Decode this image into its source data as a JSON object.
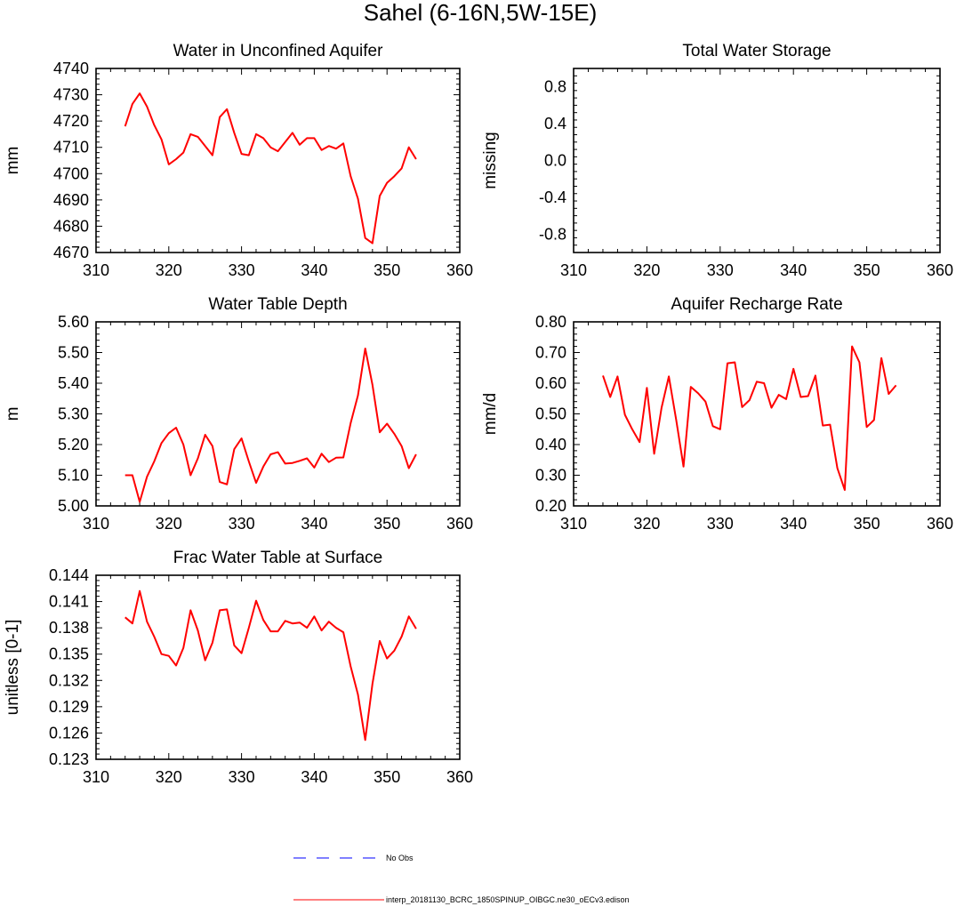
{
  "figure_title": "Sahel (6-16N,5W-15E)",
  "colors": {
    "model": "#ff0000",
    "obs": "#0000ff",
    "axis": "#000000"
  },
  "legend": {
    "obs_label": "No Obs",
    "model_label": "interp_20181130_BCRC_1850SPINUP_OIBGC.ne30_oECv3.edison"
  },
  "chart_data": [
    {
      "id": "unconfined-aquifer",
      "type": "line",
      "title": "Water in Unconfined Aquifer",
      "xlabel": "",
      "ylabel": "mm",
      "xlim": [
        310,
        360
      ],
      "ylim": [
        4670,
        4740
      ],
      "xticks": [
        310,
        320,
        330,
        340,
        350,
        360
      ],
      "yticks": [
        4670,
        4680,
        4690,
        4700,
        4710,
        4720,
        4730,
        4740
      ],
      "ytick_labels": [
        "4670",
        "4680",
        "4690",
        "4700",
        "4710",
        "4720",
        "4730",
        "4740"
      ],
      "x": [
        314,
        315,
        316,
        317,
        318,
        319,
        320,
        321,
        322,
        323,
        324,
        325,
        326,
        327,
        328,
        329,
        330,
        331,
        332,
        333,
        334,
        335,
        336,
        337,
        338,
        339,
        340,
        341,
        342,
        343,
        344,
        345,
        346,
        347,
        348,
        349,
        350,
        351,
        352,
        353,
        354
      ],
      "series": [
        {
          "name": "interp_20181130_BCRC_1850SPINUP_OIBGC.ne30_oECv3.edison",
          "values": [
            4718,
            4726.5,
            4730.5,
            4725.5,
            4718.5,
            4713,
            4703.5,
            4705.5,
            4708,
            4715,
            4714,
            4710.5,
            4707,
            4721.5,
            4724.5,
            4715.5,
            4707.5,
            4707,
            4715,
            4713.5,
            4710,
            4708.5,
            4712,
            4715.5,
            4711,
            4713.5,
            4713.5,
            4709,
            4710.5,
            4709.5,
            4711.5,
            4699,
            4690.5,
            4675.5,
            4673.5,
            4691.5,
            4696.5,
            4699,
            4702,
            4710,
            4705.5
          ]
        }
      ]
    },
    {
      "id": "total-water-storage",
      "type": "line",
      "title": "Total Water Storage",
      "xlabel": "",
      "ylabel": "missing",
      "xlim": [
        310,
        360
      ],
      "ylim": [
        -1,
        1
      ],
      "xticks": [
        310,
        320,
        330,
        340,
        350,
        360
      ],
      "yticks": [
        -0.8,
        -0.4,
        0.0,
        0.4,
        0.8
      ],
      "ytick_labels": [
        "-0.8",
        "-0.4",
        "0.0",
        "0.4",
        "0.8"
      ],
      "x": [],
      "series": []
    },
    {
      "id": "water-table-depth",
      "type": "line",
      "title": "Water Table Depth",
      "xlabel": "",
      "ylabel": "m",
      "xlim": [
        310,
        360
      ],
      "ylim": [
        5.0,
        5.6
      ],
      "xticks": [
        310,
        320,
        330,
        340,
        350,
        360
      ],
      "yticks": [
        5.0,
        5.1,
        5.2,
        5.3,
        5.4,
        5.5,
        5.6
      ],
      "ytick_labels": [
        "5.00",
        "5.10",
        "5.20",
        "5.30",
        "5.40",
        "5.50",
        "5.60"
      ],
      "x": [
        314,
        315,
        316,
        317,
        318,
        319,
        320,
        321,
        322,
        323,
        324,
        325,
        326,
        327,
        328,
        329,
        330,
        331,
        332,
        333,
        334,
        335,
        336,
        337,
        338,
        339,
        340,
        341,
        342,
        343,
        344,
        345,
        346,
        347,
        348,
        349,
        350,
        351,
        352,
        353,
        354
      ],
      "series": [
        {
          "name": "interp_20181130_BCRC_1850SPINUP_OIBGC.ne30_oECv3.edison",
          "values": [
            5.1,
            5.1,
            5.013,
            5.095,
            5.145,
            5.205,
            5.237,
            5.255,
            5.2,
            5.1,
            5.155,
            5.232,
            5.195,
            5.078,
            5.07,
            5.185,
            5.22,
            5.145,
            5.075,
            5.128,
            5.168,
            5.175,
            5.138,
            5.14,
            5.147,
            5.155,
            5.125,
            5.17,
            5.143,
            5.157,
            5.158,
            5.27,
            5.36,
            5.513,
            5.395,
            5.24,
            5.268,
            5.235,
            5.195,
            5.123,
            5.168
          ]
        }
      ]
    },
    {
      "id": "aquifer-recharge-rate",
      "type": "line",
      "title": "Aquifer Recharge Rate",
      "xlabel": "",
      "ylabel": "mm/d",
      "xlim": [
        310,
        360
      ],
      "ylim": [
        0.2,
        0.8
      ],
      "xticks": [
        310,
        320,
        330,
        340,
        350,
        360
      ],
      "yticks": [
        0.2,
        0.3,
        0.4,
        0.5,
        0.6,
        0.7,
        0.8
      ],
      "ytick_labels": [
        "0.20",
        "0.30",
        "0.40",
        "0.50",
        "0.60",
        "0.70",
        "0.80"
      ],
      "x": [
        314,
        315,
        316,
        317,
        318,
        319,
        320,
        321,
        322,
        323,
        324,
        325,
        326,
        327,
        328,
        329,
        330,
        331,
        332,
        333,
        334,
        335,
        336,
        337,
        338,
        339,
        340,
        341,
        342,
        343,
        344,
        345,
        346,
        347,
        348,
        349,
        350,
        351,
        352,
        353,
        354
      ],
      "series": [
        {
          "name": "interp_20181130_BCRC_1850SPINUP_OIBGC.ne30_oECv3.edison",
          "values": [
            0.625,
            0.555,
            0.622,
            0.497,
            0.45,
            0.408,
            0.585,
            0.37,
            0.52,
            0.622,
            0.48,
            0.328,
            0.588,
            0.567,
            0.54,
            0.46,
            0.45,
            0.665,
            0.668,
            0.522,
            0.545,
            0.605,
            0.6,
            0.52,
            0.562,
            0.548,
            0.647,
            0.555,
            0.558,
            0.625,
            0.462,
            0.465,
            0.323,
            0.252,
            0.72,
            0.668,
            0.457,
            0.48,
            0.682,
            0.565,
            0.593
          ]
        }
      ]
    },
    {
      "id": "frac-water-table-surface",
      "type": "line",
      "title": "Frac Water Table at Surface",
      "xlabel": "",
      "ylabel": "unitless [0-1]",
      "xlim": [
        310,
        360
      ],
      "ylim": [
        0.123,
        0.144
      ],
      "xticks": [
        310,
        320,
        330,
        340,
        350,
        360
      ],
      "yticks": [
        0.123,
        0.126,
        0.129,
        0.132,
        0.135,
        0.138,
        0.141,
        0.144
      ],
      "ytick_labels": [
        "0.123",
        "0.126",
        "0.129",
        "0.132",
        "0.135",
        "0.138",
        "0.141",
        "0.144"
      ],
      "x": [
        314,
        315,
        316,
        317,
        318,
        319,
        320,
        321,
        322,
        323,
        324,
        325,
        326,
        327,
        328,
        329,
        330,
        331,
        332,
        333,
        334,
        335,
        336,
        337,
        338,
        339,
        340,
        341,
        342,
        343,
        344,
        345,
        346,
        347,
        348,
        349,
        350,
        351,
        352,
        353,
        354
      ],
      "series": [
        {
          "name": "interp_20181130_BCRC_1850SPINUP_OIBGC.ne30_oECv3.edison",
          "values": [
            0.1392,
            0.1385,
            0.1422,
            0.1387,
            0.137,
            0.135,
            0.1348,
            0.1337,
            0.1357,
            0.14,
            0.1377,
            0.1343,
            0.1363,
            0.14,
            0.1401,
            0.136,
            0.1351,
            0.138,
            0.1411,
            0.1389,
            0.1376,
            0.1376,
            0.1388,
            0.1385,
            0.1386,
            0.138,
            0.1393,
            0.1377,
            0.1387,
            0.138,
            0.1375,
            0.1336,
            0.1304,
            0.1252,
            0.1316,
            0.1365,
            0.1345,
            0.1354,
            0.137,
            0.1393,
            0.1379
          ]
        }
      ]
    }
  ]
}
